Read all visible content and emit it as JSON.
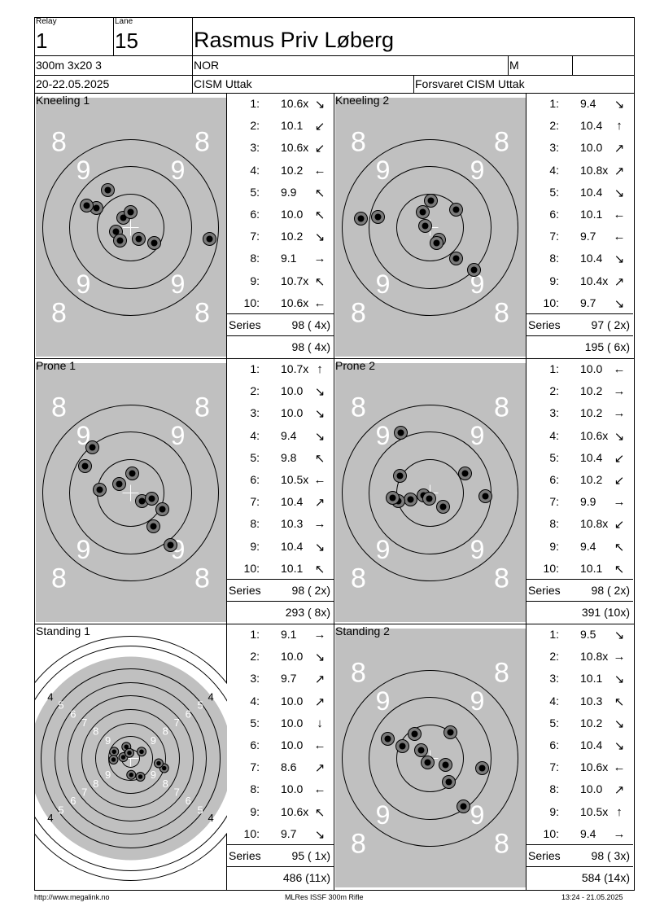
{
  "header": {
    "relay_label": "Relay",
    "relay": "1",
    "lane_label": "Lane",
    "lane": "15",
    "name": "Rasmus Priv Løberg",
    "event": "300m 3x20 3",
    "nation": "NOR",
    "gender": "M",
    "date": "20-22.05.2025",
    "competition": "CISM Uttak",
    "club": "Forsvaret CISM Uttak"
  },
  "series_label": "Series",
  "panels": [
    {
      "title": "Kneeling 1",
      "target": "grey",
      "shots": [
        {
          "n": "1:",
          "v": "10.6x",
          "dir": "↘",
          "x": -9,
          "y": -12
        },
        {
          "n": "2:",
          "v": "10.1",
          "dir": "↙",
          "x": -42,
          "y": -24
        },
        {
          "n": "3:",
          "v": "10.6x",
          "dir": "↙",
          "x": -18,
          "y": 5
        },
        {
          "n": "4:",
          "v": "10.2",
          "dir": "←",
          "x": -13,
          "y": 16
        },
        {
          "n": "5:",
          "v": "9.9",
          "dir": "↖",
          "x": -28,
          "y": -46
        },
        {
          "n": "6:",
          "v": "10.0",
          "dir": "↖",
          "x": -54,
          "y": -27
        },
        {
          "n": "7:",
          "v": "10.2",
          "dir": "↘",
          "x": 10,
          "y": 14
        },
        {
          "n": "8:",
          "v": "9.1",
          "dir": "→",
          "x": 97,
          "y": 14
        },
        {
          "n": "9:",
          "v": "10.7x",
          "dir": "↖",
          "x": 0,
          "y": -19
        },
        {
          "n": "10:",
          "v": "10.6x",
          "dir": "←",
          "x": 29,
          "y": 19
        }
      ],
      "series": "98 ( 4x)",
      "total": "98 ( 4x)"
    },
    {
      "title": "Kneeling 2",
      "target": "grey",
      "shots": [
        {
          "n": "1:",
          "v": "9.4",
          "dir": "↘",
          "x": 32,
          "y": 38
        },
        {
          "n": "2:",
          "v": "10.4",
          "dir": "↑",
          "x": 1,
          "y": -33
        },
        {
          "n": "3:",
          "v": "10.0",
          "dir": "↗",
          "x": 32,
          "y": -22
        },
        {
          "n": "4:",
          "v": "10.8x",
          "dir": "↗",
          "x": -9,
          "y": -19
        },
        {
          "n": "5:",
          "v": "10.4",
          "dir": "↘",
          "x": 11,
          "y": 15
        },
        {
          "n": "6:",
          "v": "10.1",
          "dir": "←",
          "x": -64,
          "y": -13
        },
        {
          "n": "7:",
          "v": "9.7",
          "dir": "←",
          "x": -6,
          "y": -2
        },
        {
          "n": "8:",
          "v": "10.4",
          "dir": "↘",
          "x": 54,
          "y": 52
        },
        {
          "n": "9:",
          "v": "10.4x",
          "dir": "↗",
          "x": 8,
          "y": 19
        },
        {
          "n": "10:",
          "v": "9.7",
          "dir": "↘",
          "x": -85,
          "y": -11
        }
      ],
      "series": "97 ( 2x)",
      "total": "195 ( 6x)"
    },
    {
      "title": "Prone 1",
      "target": "grey",
      "shots": [
        {
          "n": "1:",
          "v": "10.7x",
          "dir": "↑",
          "x": -14,
          "y": -11
        },
        {
          "n": "2:",
          "v": "10.0",
          "dir": "↘",
          "x": -47,
          "y": -56
        },
        {
          "n": "3:",
          "v": "10.0",
          "dir": "↘",
          "x": 14,
          "y": 10
        },
        {
          "n": "4:",
          "v": "9.4",
          "dir": "↘",
          "x": 39,
          "y": 20
        },
        {
          "n": "5:",
          "v": "9.8",
          "dir": "↖",
          "x": -38,
          "y": -4
        },
        {
          "n": "6:",
          "v": "10.5x",
          "dir": "←",
          "x": 2,
          "y": -24
        },
        {
          "n": "7:",
          "v": "10.4",
          "dir": "↗",
          "x": 26,
          "y": 7
        },
        {
          "n": "8:",
          "v": "10.3",
          "dir": "→",
          "x": -56,
          "y": -33
        },
        {
          "n": "9:",
          "v": "10.4",
          "dir": "↘",
          "x": 28,
          "y": 41
        },
        {
          "n": "10:",
          "v": "10.1",
          "dir": "↖",
          "x": 49,
          "y": 64
        }
      ],
      "series": "98 ( 2x)",
      "total": "293 ( 8x)"
    },
    {
      "title": "Prone 2",
      "target": "grey",
      "shots": [
        {
          "n": "1:",
          "v": "10.0",
          "dir": "←",
          "x": -24,
          "y": 8
        },
        {
          "n": "2:",
          "v": "10.2",
          "dir": "→",
          "x": -37,
          "y": -21
        },
        {
          "n": "3:",
          "v": "10.2",
          "dir": "→",
          "x": -39,
          "y": 10
        },
        {
          "n": "4:",
          "v": "10.6x",
          "dir": "↘",
          "x": -8,
          "y": 3
        },
        {
          "n": "5:",
          "v": "10.4",
          "dir": "↙",
          "x": -36,
          "y": -74
        },
        {
          "n": "6:",
          "v": "10.2",
          "dir": "↙",
          "x": 43,
          "y": -24
        },
        {
          "n": "7:",
          "v": "9.9",
          "dir": "→",
          "x": -46,
          "y": 6
        },
        {
          "n": "8:",
          "v": "10.8x",
          "dir": "↙",
          "x": -1,
          "y": 7
        },
        {
          "n": "9:",
          "v": "9.4",
          "dir": "↖",
          "x": 68,
          "y": 4
        },
        {
          "n": "10:",
          "v": "10.1",
          "dir": "↖",
          "x": 16,
          "y": 17
        }
      ],
      "series": "98 ( 2x)",
      "total": "391 (10x)"
    },
    {
      "title": "Standing 1",
      "target": "standing",
      "shots": [
        {
          "n": "1:",
          "v": "9.1",
          "dir": "→",
          "x": -27,
          "y": -11
        },
        {
          "n": "2:",
          "v": "10.0",
          "dir": "↘",
          "x": -7,
          "y": -19
        },
        {
          "n": "3:",
          "v": "9.7",
          "dir": "↗",
          "x": 55,
          "y": 16
        },
        {
          "n": "4:",
          "v": "10.0",
          "dir": "↗",
          "x": -28,
          "y": 2
        },
        {
          "n": "5:",
          "v": "10.0",
          "dir": "↓",
          "x": -12,
          "y": -2
        },
        {
          "n": "6:",
          "v": "10.0",
          "dir": "←",
          "x": 18,
          "y": -11
        },
        {
          "n": "7:",
          "v": "8.6",
          "dir": "↗",
          "x": 16,
          "y": 30
        },
        {
          "n": "8:",
          "v": "10.0",
          "dir": "←",
          "x": 1,
          "y": 27
        },
        {
          "n": "9:",
          "v": "10.6x",
          "dir": "↖",
          "x": -2,
          "y": -9
        },
        {
          "n": "10:",
          "v": "9.7",
          "dir": "↘",
          "x": 46,
          "y": 8
        }
      ],
      "series": "95 ( 1x)",
      "total": "486 (11x)"
    },
    {
      "title": "Standing 2",
      "target": "grey",
      "shots": [
        {
          "n": "1:",
          "v": "9.5",
          "dir": "↘",
          "x": -11,
          "y": -10
        },
        {
          "n": "2:",
          "v": "10.8x",
          "dir": "→",
          "x": -3,
          "y": 5
        },
        {
          "n": "3:",
          "v": "10.1",
          "dir": "↘",
          "x": -19,
          "y": -30
        },
        {
          "n": "4:",
          "v": "10.3",
          "dir": "↖",
          "x": -34,
          "y": -15
        },
        {
          "n": "5:",
          "v": "10.2",
          "dir": "↘",
          "x": 23,
          "y": 29
        },
        {
          "n": "6:",
          "v": "10.4",
          "dir": "↘",
          "x": 64,
          "y": 12
        },
        {
          "n": "7:",
          "v": "10.6x",
          "dir": "←",
          "x": -52,
          "y": -24
        },
        {
          "n": "8:",
          "v": "10.0",
          "dir": "↗",
          "x": 41,
          "y": 59
        },
        {
          "n": "9:",
          "v": "10.5x",
          "dir": "↑",
          "x": 19,
          "y": 8
        },
        {
          "n": "10:",
          "v": "9.4",
          "dir": "→",
          "x": 25,
          "y": -32
        }
      ],
      "series": "98 ( 3x)",
      "total": "584 (14x)"
    }
  ],
  "footer": {
    "url": "http://www.megalink.no",
    "software": "MLRes ISSF 300m Rifle",
    "timestamp": "13:24 - 21.05.2025"
  }
}
